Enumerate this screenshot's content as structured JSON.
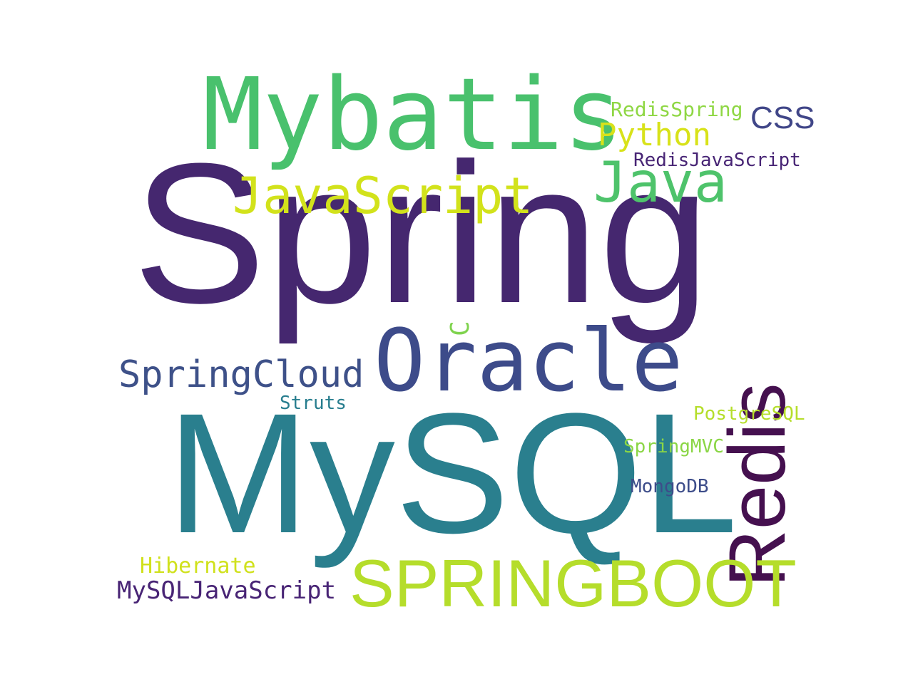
{
  "word_cloud": {
    "words": [
      {
        "id": "spring",
        "text": "Spring",
        "color": "#45276f",
        "orientation": "horizontal"
      },
      {
        "id": "mysql",
        "text": "MySQL",
        "color": "#2a7f8e",
        "orientation": "horizontal"
      },
      {
        "id": "mybatis",
        "text": "Mybatis",
        "color": "#49c16d",
        "orientation": "horizontal"
      },
      {
        "id": "oracle",
        "text": "Oracle",
        "color": "#3d4b8a",
        "orientation": "horizontal"
      },
      {
        "id": "redis",
        "text": "Redis",
        "color": "#45104f",
        "orientation": "vertical"
      },
      {
        "id": "springboot",
        "text": "SPRINGBOOT",
        "color": "#b5dd2b",
        "orientation": "horizontal"
      },
      {
        "id": "javascript",
        "text": "JavaScript",
        "color": "#d2e21b",
        "orientation": "horizontal"
      },
      {
        "id": "java",
        "text": "Java",
        "color": "#4ec36b",
        "orientation": "horizontal"
      },
      {
        "id": "springcloud",
        "text": "SpringCloud",
        "color": "#3e5189",
        "orientation": "horizontal"
      },
      {
        "id": "python",
        "text": "Python",
        "color": "#d8e219",
        "orientation": "horizontal"
      },
      {
        "id": "css",
        "text": "CSS",
        "color": "#404688",
        "orientation": "horizontal"
      },
      {
        "id": "redisspring",
        "text": "RedisSpring",
        "color": "#8fd744",
        "orientation": "horizontal"
      },
      {
        "id": "redisjavascript",
        "text": "RedisJavaScript",
        "color": "#482575",
        "orientation": "horizontal"
      },
      {
        "id": "c",
        "text": "C",
        "color": "#7fd34e",
        "orientation": "vertical"
      },
      {
        "id": "struts",
        "text": "Struts",
        "color": "#277d8e",
        "orientation": "horizontal"
      },
      {
        "id": "postgresql",
        "text": "PostgreSQL",
        "color": "#b5de2b",
        "orientation": "horizontal"
      },
      {
        "id": "springmvc",
        "text": "SpringMVC",
        "color": "#8bd646",
        "orientation": "horizontal"
      },
      {
        "id": "mongodb",
        "text": "MongoDB",
        "color": "#3d4d8a",
        "orientation": "horizontal"
      },
      {
        "id": "hibernate",
        "text": "Hibernate",
        "color": "#d0e11c",
        "orientation": "horizontal"
      },
      {
        "id": "mysqljavascript",
        "text": "MySQLJavaScript",
        "color": "#482475",
        "orientation": "horizontal"
      }
    ]
  }
}
